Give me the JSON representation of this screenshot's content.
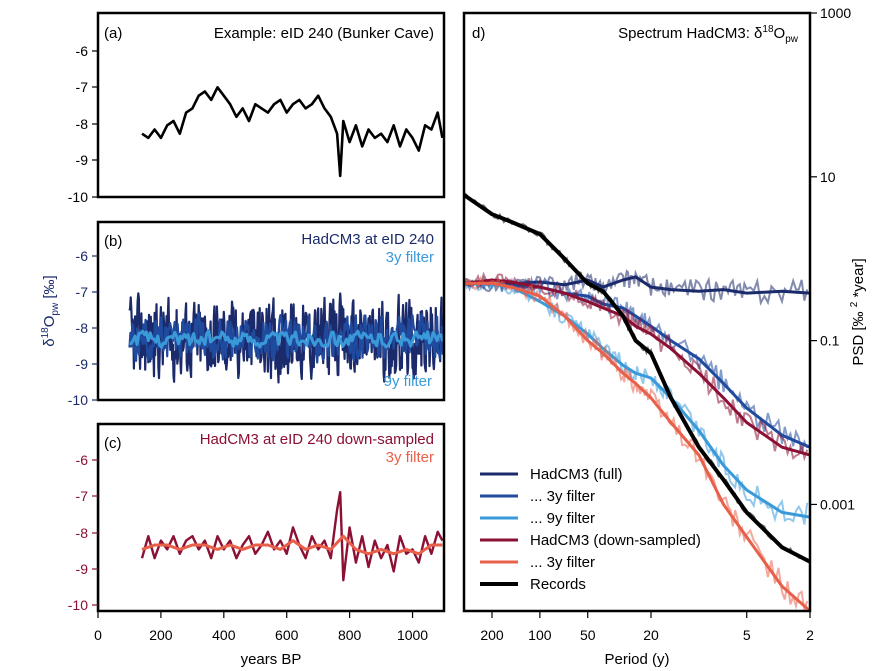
{
  "chart_data": [
    {
      "type": "line",
      "panel": "(a)",
      "title": "Example: eID 240 (Bunker Cave)",
      "xlim": [
        0,
        1100
      ],
      "ylim": [
        -10,
        -5.5
      ],
      "yticks": [
        "-6",
        "-7",
        "-8",
        "-9",
        "-10"
      ],
      "series": [
        {
          "color": "#000000",
          "x": [
            140,
            160,
            180,
            200,
            220,
            240,
            260,
            280,
            300,
            320,
            340,
            360,
            380,
            400,
            420,
            440,
            460,
            480,
            500,
            520,
            540,
            560,
            580,
            600,
            620,
            640,
            660,
            680,
            700,
            720,
            740,
            760,
            770,
            780,
            800,
            820,
            840,
            860,
            880,
            900,
            920,
            940,
            960,
            980,
            1000,
            1020,
            1040,
            1060,
            1080,
            1095
          ],
          "values": [
            -8.5,
            -8.6,
            -8.4,
            -8.6,
            -8.3,
            -8.2,
            -8.5,
            -8.0,
            -7.9,
            -7.6,
            -7.5,
            -7.7,
            -7.4,
            -7.6,
            -7.8,
            -8.1,
            -7.9,
            -8.2,
            -7.8,
            -7.9,
            -8.0,
            -7.8,
            -7.7,
            -8.0,
            -7.8,
            -7.7,
            -7.9,
            -7.8,
            -7.6,
            -7.9,
            -8.1,
            -8.5,
            -9.5,
            -8.2,
            -8.7,
            -8.3,
            -8.8,
            -8.4,
            -8.6,
            -8.5,
            -8.7,
            -8.3,
            -8.8,
            -8.4,
            -8.6,
            -8.9,
            -8.3,
            -8.4,
            -8.0,
            -8.6
          ]
        }
      ]
    },
    {
      "type": "line",
      "panel": "(b)",
      "title": "HadCM3 at eID 240",
      "filter_label": "3y filter",
      "hidden_label": "9y filter",
      "ylabel": "δ18Opw [‰]",
      "xlim": [
        0,
        1100
      ],
      "ylim": [
        -10,
        -5.5
      ],
      "yticks": [
        "-6",
        "-7",
        "-8",
        "-9",
        "-10"
      ],
      "series": [
        {
          "name": "HadCM3 (full)",
          "color": "#1b2a6b",
          "mean": -8.5,
          "amplitude": 0.9,
          "xrange": [
            100,
            1100
          ]
        },
        {
          "name": "3y filter",
          "color": "#1f4a9e",
          "mean": -8.5,
          "amplitude": 0.5,
          "xrange": [
            100,
            1100
          ]
        },
        {
          "name": "9y filter",
          "color": "#3a9ad9",
          "mean": -8.5,
          "amplitude": 0.25,
          "xrange": [
            100,
            1100
          ]
        }
      ]
    },
    {
      "type": "line",
      "panel": "(c)",
      "title": "HadCM3 at eID 240 down-sampled",
      "filter_label": "3y filter",
      "xlim": [
        0,
        1100
      ],
      "ylim": [
        -10,
        -5.5
      ],
      "yticks": [
        "-6",
        "-7",
        "-8",
        "-9",
        "-10"
      ],
      "xticks": [
        "0",
        "200",
        "400",
        "600",
        "800",
        "1000"
      ],
      "xlabel": "years BP",
      "series": [
        {
          "name": "HadCM3 (down-sampled)",
          "color": "#8b1033",
          "x": [
            140,
            160,
            180,
            200,
            220,
            240,
            260,
            280,
            300,
            320,
            340,
            360,
            380,
            400,
            420,
            440,
            460,
            480,
            500,
            520,
            540,
            560,
            580,
            600,
            620,
            640,
            660,
            680,
            700,
            720,
            740,
            760,
            770,
            780,
            800,
            820,
            840,
            860,
            880,
            900,
            920,
            940,
            960,
            980,
            1000,
            1020,
            1040,
            1060,
            1080,
            1095
          ],
          "values": [
            -8.8,
            -8.3,
            -8.8,
            -8.4,
            -8.6,
            -8.3,
            -8.7,
            -8.4,
            -8.3,
            -8.6,
            -8.4,
            -8.8,
            -8.3,
            -8.6,
            -8.4,
            -8.8,
            -8.5,
            -8.3,
            -8.7,
            -8.5,
            -8.2,
            -8.6,
            -8.4,
            -8.7,
            -8.1,
            -8.5,
            -8.8,
            -8.3,
            -8.6,
            -8.4,
            -8.8,
            -7.7,
            -7.3,
            -9.3,
            -8.1,
            -8.9,
            -8.3,
            -9.0,
            -8.4,
            -8.8,
            -8.5,
            -9.1,
            -8.3,
            -8.7,
            -8.6,
            -8.9,
            -8.3,
            -8.7,
            -8.2,
            -8.4
          ]
        },
        {
          "name": "3y filter",
          "color": "#e8604a",
          "x": [
            140,
            180,
            220,
            260,
            300,
            340,
            380,
            420,
            460,
            500,
            540,
            580,
            620,
            660,
            700,
            740,
            780,
            820,
            860,
            900,
            940,
            980,
            1020,
            1060,
            1095
          ],
          "values": [
            -8.6,
            -8.5,
            -8.5,
            -8.6,
            -8.5,
            -8.5,
            -8.6,
            -8.5,
            -8.6,
            -8.5,
            -8.5,
            -8.6,
            -8.4,
            -8.6,
            -8.5,
            -8.6,
            -8.3,
            -8.6,
            -8.7,
            -8.6,
            -8.7,
            -8.6,
            -8.7,
            -8.5,
            -8.5
          ]
        }
      ]
    },
    {
      "type": "line",
      "panel": "d)",
      "title": "Spectrum HadCM3: δ18Opw",
      "xlabel": "Period (y)",
      "ylabel": "PSD [‰ 2 *year]",
      "x_scale": "log-reversed",
      "y_scale": "log",
      "xlim": [
        300,
        2
      ],
      "ylim": [
        5e-05,
        1000
      ],
      "xticks": [
        "200",
        "100",
        "50",
        "20",
        "5",
        "2"
      ],
      "yticks": [
        "1000",
        "10",
        "0.1",
        "0.001"
      ],
      "legend_position": "bottom-left",
      "series": [
        {
          "name": "HadCM3 (full)",
          "color": "#1b2a6b",
          "x": [
            300,
            200,
            150,
            100,
            70,
            50,
            40,
            30,
            25,
            20,
            15,
            10,
            7,
            5,
            3,
            2
          ],
          "values": [
            0.5,
            0.48,
            0.5,
            0.52,
            0.48,
            0.55,
            0.45,
            0.55,
            0.6,
            0.45,
            0.42,
            0.4,
            0.42,
            0.38,
            0.4,
            0.38
          ]
        },
        {
          "name": "... 3y filter",
          "color": "#1f4a9e",
          "x": [
            300,
            200,
            150,
            100,
            70,
            50,
            40,
            30,
            25,
            20,
            15,
            10,
            7,
            5,
            3,
            2
          ],
          "values": [
            0.5,
            0.48,
            0.47,
            0.45,
            0.38,
            0.35,
            0.28,
            0.25,
            0.2,
            0.15,
            0.1,
            0.06,
            0.03,
            0.015,
            0.007,
            0.005
          ]
        },
        {
          "name": "... 9y filter",
          "color": "#3a9ad9",
          "x": [
            300,
            200,
            150,
            100,
            70,
            50,
            40,
            30,
            25,
            20,
            15,
            10,
            7,
            5,
            3,
            2
          ],
          "values": [
            0.5,
            0.48,
            0.45,
            0.3,
            0.2,
            0.12,
            0.08,
            0.05,
            0.04,
            0.035,
            0.02,
            0.008,
            0.003,
            0.0015,
            0.0008,
            0.0007
          ]
        },
        {
          "name": "HadCM3 (down-sampled)",
          "color": "#8b1033",
          "x": [
            300,
            200,
            150,
            100,
            70,
            50,
            40,
            30,
            25,
            20,
            15,
            10,
            7,
            5,
            3,
            2
          ],
          "values": [
            0.5,
            0.55,
            0.52,
            0.45,
            0.38,
            0.3,
            0.25,
            0.2,
            0.15,
            0.12,
            0.08,
            0.04,
            0.02,
            0.01,
            0.005,
            0.004
          ]
        },
        {
          "name": "... 3y filter",
          "color": "#e8604a",
          "x": [
            300,
            200,
            150,
            100,
            70,
            50,
            40,
            30,
            25,
            20,
            15,
            10,
            7,
            5,
            3,
            2
          ],
          "values": [
            0.5,
            0.5,
            0.45,
            0.35,
            0.2,
            0.1,
            0.07,
            0.04,
            0.03,
            0.02,
            0.01,
            0.004,
            0.001,
            0.0004,
            0.0001,
            5e-05
          ]
        },
        {
          "name": "Records",
          "color": "#000000",
          "x": [
            300,
            200,
            150,
            100,
            70,
            50,
            40,
            30,
            25,
            20,
            15,
            10,
            7,
            5,
            3,
            2
          ],
          "values": [
            6,
            3.5,
            2.8,
            2.0,
            1.0,
            0.5,
            0.4,
            0.2,
            0.1,
            0.07,
            0.02,
            0.005,
            0.002,
            0.0008,
            0.0003,
            0.0002
          ]
        }
      ]
    }
  ]
}
